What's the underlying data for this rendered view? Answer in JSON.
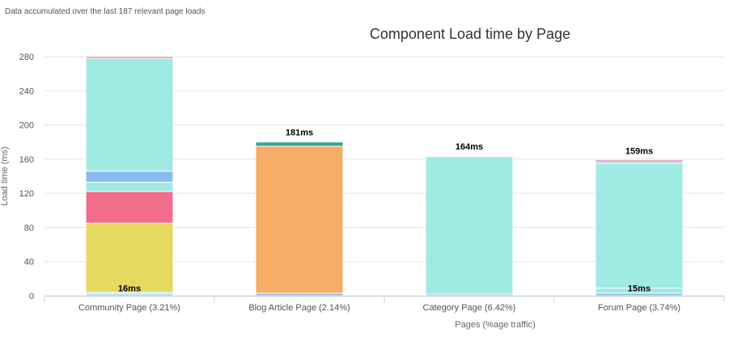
{
  "note": "Data accumulated over the last 187 relevant page loads",
  "chart_data": {
    "type": "bar",
    "stacked": true,
    "title": "Component Load time by Page",
    "xlabel": "Pages (%age traffic)",
    "ylabel": "Load time (ms)",
    "ylim": [
      0,
      280
    ],
    "yticks": [
      "0",
      "40",
      "80",
      "120",
      "160",
      "200",
      "240",
      "280"
    ],
    "grid": true,
    "categories": [
      "Community Page (3.21%)",
      "Blog Article Page (2.14%)",
      "Category Page (6.42%)",
      "Forum Page (3.74%)"
    ],
    "bars": [
      {
        "segments": [
          {
            "value": 2,
            "color": "#90b8e8"
          },
          {
            "value": 2,
            "color": "#a0eae4"
          },
          {
            "value": 81,
            "color": "#e6d960"
          },
          {
            "value": 37,
            "color": "#f46c8c"
          },
          {
            "value": 11,
            "color": "#a0eae4"
          },
          {
            "value": 13,
            "color": "#8bbcf0"
          },
          {
            "value": 132,
            "color": "#a0eae4"
          },
          {
            "value": 2,
            "color": "#e07272"
          }
        ],
        "labels": [
          {
            "text": "16ms",
            "at": 5
          }
        ]
      },
      {
        "segments": [
          {
            "value": 3,
            "color": "#90b8e8"
          },
          {
            "value": 172,
            "color": "#f6ae66"
          },
          {
            "value": 5,
            "color": "#36a39c"
          }
        ],
        "labels": [
          {
            "text": "181ms",
            "at": 188
          }
        ]
      },
      {
        "segments": [
          {
            "value": 2,
            "color": "#90b8e8"
          },
          {
            "value": 161,
            "color": "#a0eae4"
          }
        ],
        "labels": [
          {
            "text": "164ms",
            "at": 171
          }
        ]
      },
      {
        "segments": [
          {
            "value": 3,
            "color": "#90b8e8"
          },
          {
            "value": 6,
            "color": "#a0eae4"
          },
          {
            "value": 146,
            "color": "#a0eae4"
          },
          {
            "value": 2,
            "color": "#8bbcf0"
          },
          {
            "value": 2,
            "color": "#e07272"
          }
        ],
        "labels": [
          {
            "text": "15ms",
            "at": 5
          },
          {
            "text": "159ms",
            "at": 166
          }
        ]
      }
    ]
  }
}
